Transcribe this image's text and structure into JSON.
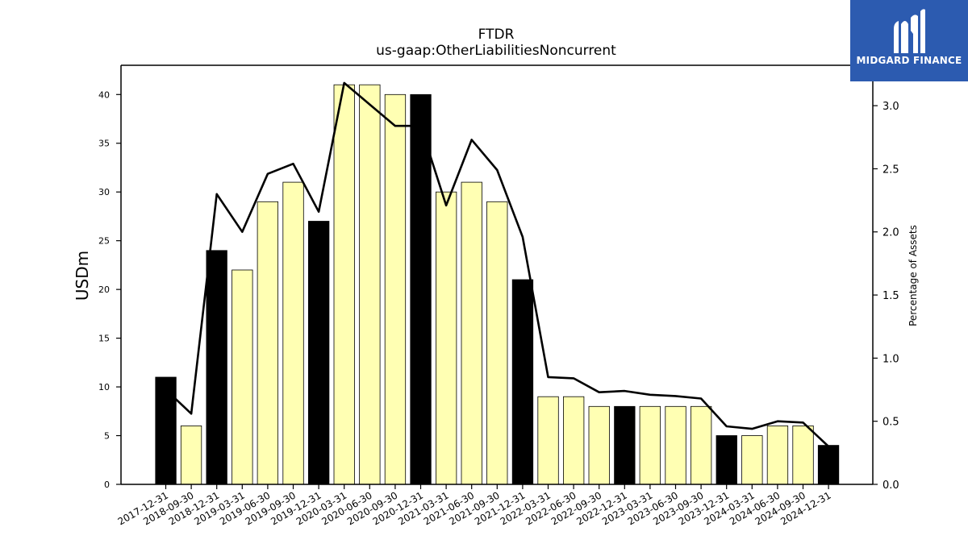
{
  "chart_data": {
    "type": "bar",
    "title": "FTDR",
    "subtitle": "us-gaap:OtherLiabilitiesNoncurrent",
    "ylabel": "USDm",
    "y2label": "Percentage of Assets",
    "ylim": [
      0,
      43
    ],
    "y2lim": [
      0,
      3.32
    ],
    "yticks": [
      0,
      5,
      10,
      15,
      20,
      25,
      30,
      35,
      40
    ],
    "y2ticks": [
      "0.0",
      "0.5",
      "1.0",
      "1.5",
      "2.0",
      "2.5",
      "3.0"
    ],
    "categories": [
      "2017-12-31",
      "2018-09-30",
      "2018-12-31",
      "2019-03-31",
      "2019-06-30",
      "2019-09-30",
      "2019-12-31",
      "2020-03-31",
      "2020-06-30",
      "2020-09-30",
      "2020-12-31",
      "2021-03-31",
      "2021-06-30",
      "2021-09-30",
      "2021-12-31",
      "2022-03-31",
      "2022-06-30",
      "2022-09-30",
      "2022-12-31",
      "2023-03-31",
      "2023-06-30",
      "2023-09-30",
      "2023-12-31",
      "2024-03-31",
      "2024-06-30",
      "2024-09-30",
      "2024-12-31"
    ],
    "values": [
      11,
      6,
      24,
      22,
      29,
      31,
      27,
      41,
      41,
      40,
      40,
      30,
      31,
      29,
      21,
      9,
      9,
      8,
      8,
      8,
      8,
      8,
      5,
      5,
      6,
      6,
      4
    ],
    "annual": [
      true,
      false,
      true,
      false,
      false,
      false,
      true,
      false,
      false,
      false,
      true,
      false,
      false,
      false,
      true,
      false,
      false,
      false,
      true,
      false,
      false,
      false,
      true,
      false,
      false,
      false,
      true
    ],
    "series": [
      {
        "name": "USDm",
        "type": "bar",
        "values": [
          11,
          6,
          24,
          22,
          29,
          31,
          27,
          41,
          41,
          40,
          40,
          30,
          31,
          29,
          21,
          9,
          9,
          8,
          8,
          8,
          8,
          8,
          5,
          5,
          6,
          6,
          4
        ]
      },
      {
        "name": "Percentage of Assets",
        "type": "line",
        "axis": "right",
        "values": [
          0.75,
          0.56,
          2.3,
          2.0,
          2.46,
          2.54,
          2.16,
          3.18,
          3.01,
          2.84,
          2.84,
          2.21,
          2.73,
          2.49,
          1.96,
          0.85,
          0.84,
          0.73,
          0.74,
          0.71,
          0.7,
          0.68,
          0.46,
          0.44,
          0.5,
          0.49,
          0.3
        ]
      }
    ],
    "colors": {
      "annual_bar": "#000000",
      "quarter_bar": "#ffffb3",
      "line": "#000000"
    },
    "grid": false
  },
  "logo": {
    "text": "MIDGARD FINANCE",
    "icon": "midgard-logo-icon",
    "bg": "#2c5bb0"
  }
}
